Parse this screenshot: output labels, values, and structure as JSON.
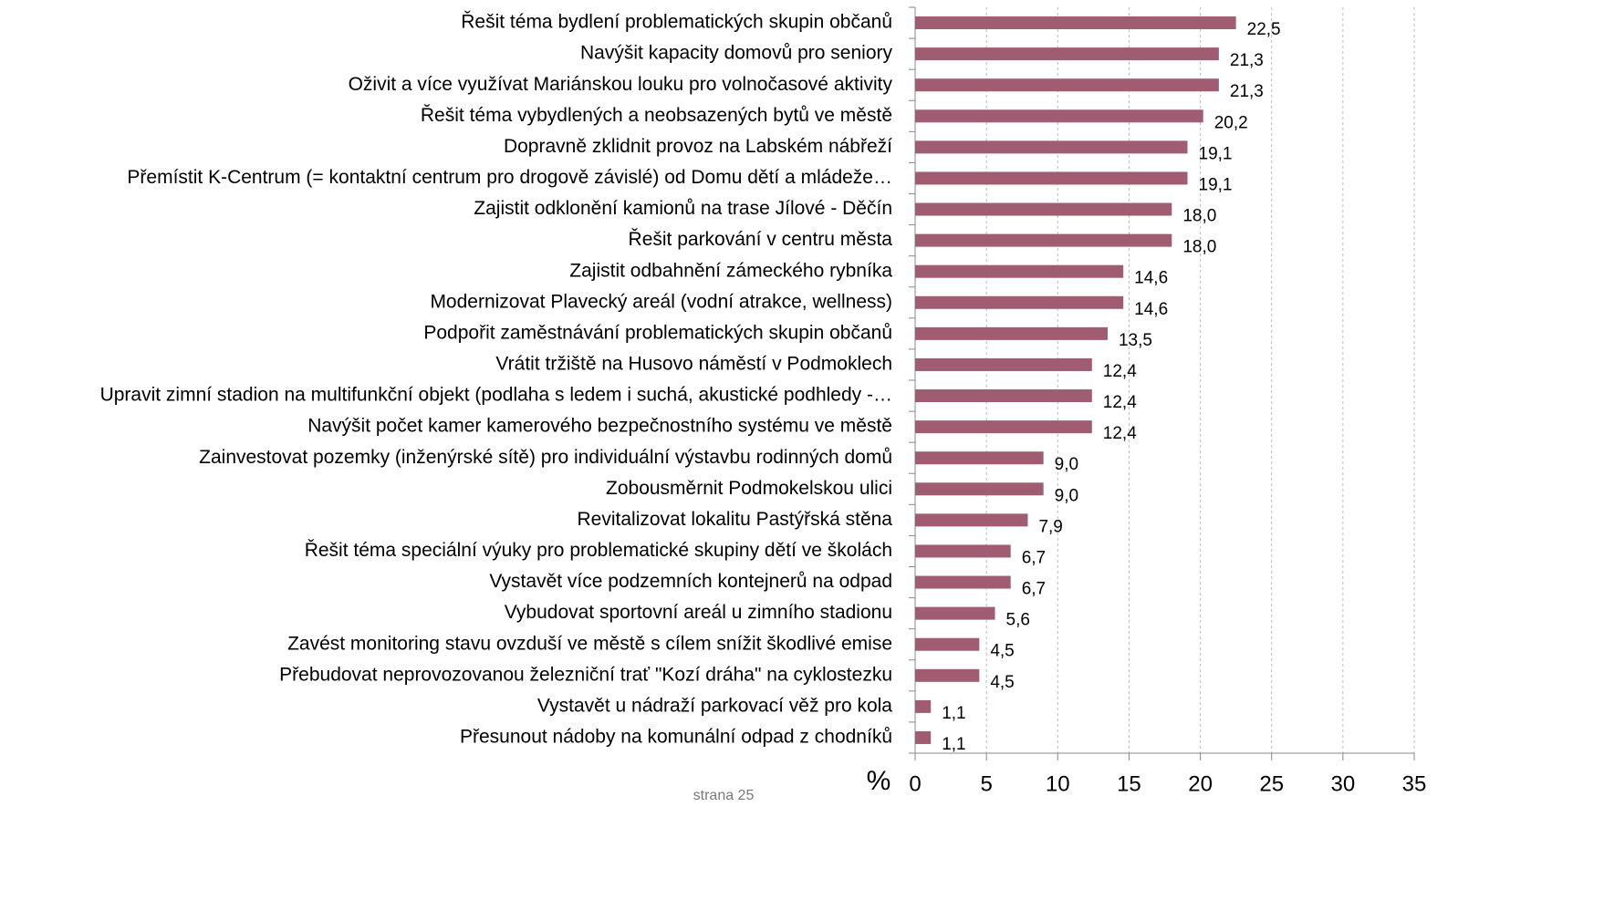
{
  "chart_data": {
    "type": "bar",
    "orientation": "horizontal",
    "categories": [
      "Řešit téma bydlení problematických skupin občanů",
      "Navýšit kapacity domovů pro seniory",
      "Oživit a více využívat Mariánskou louku pro volnočasové aktivity",
      "Řešit téma vybydlených a neobsazených bytů ve městě",
      "Dopravně zklidnit provoz na Labském nábřeží",
      "Přemístit K-Centrum (= kontaktní centrum pro drogově závislé) od Domu dětí a mládeže…",
      "Zajistit odklonění kamionů na trase Jílové - Děčín",
      "Řešit parkování v centru města",
      "Zajistit odbahnění zámeckého rybníka",
      "Modernizovat Plavecký areál (vodní atrakce, wellness)",
      "Podpořit zaměstnávání problematických skupin občanů",
      "Vrátit tržiště na Husovo náměstí v Podmoklech",
      "Upravit zimní stadion na multifunkční objekt (podlaha s ledem i suchá, akustické podhledy -…",
      "Navýšit počet kamer kamerového bezpečnostního systému ve městě",
      "Zainvestovat pozemky (inženýrské sítě) pro individuální výstavbu rodinných domů",
      "Zobousměrnit Podmokelskou ulici",
      "Revitalizovat lokalitu Pastýřská stěna",
      "Řešit téma speciální výuky pro problematické skupiny dětí ve školách",
      "Vystavět více podzemních kontejnerů na odpad",
      "Vybudovat sportovní areál u zimního stadionu",
      "Zavést monitoring stavu ovzduší ve městě s cílem snížit škodlivé emise",
      "Přebudovat neprovozovanou železniční trať \"Kozí dráha\" na cyklostezku",
      "Vystavět u nádraží parkovací věž pro kola",
      "Přesunout nádoby na komunální odpad z chodníků"
    ],
    "values": [
      22.5,
      21.3,
      21.3,
      20.2,
      19.1,
      19.1,
      18.0,
      18.0,
      14.6,
      14.6,
      13.5,
      12.4,
      12.4,
      12.4,
      9.0,
      9.0,
      7.9,
      6.7,
      6.7,
      5.6,
      4.5,
      4.5,
      1.1,
      1.1
    ],
    "value_labels": [
      "22,5",
      "21,3",
      "21,3",
      "20,2",
      "19,1",
      "19,1",
      "18,0",
      "18,0",
      "14,6",
      "14,6",
      "13,5",
      "12,4",
      "12,4",
      "12,4",
      "9,0",
      "9,0",
      "7,9",
      "6,7",
      "6,7",
      "5,6",
      "4,5",
      "4,5",
      "1,1",
      "1,1"
    ],
    "color": "#a05c70",
    "xlabel": "%",
    "xlim": [
      0,
      35
    ],
    "xticks": [
      0,
      5,
      10,
      15,
      20,
      25,
      30,
      35
    ],
    "grid": true
  },
  "footer": "strana 25"
}
